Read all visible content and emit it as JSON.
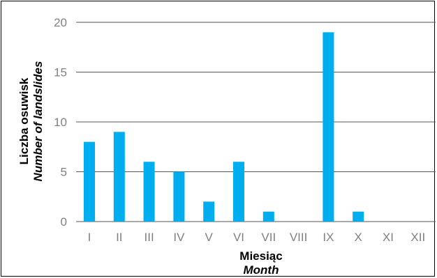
{
  "chart_data": {
    "type": "bar",
    "categories": [
      "I",
      "II",
      "III",
      "IV",
      "V",
      "VI",
      "VII",
      "VIII",
      "IX",
      "X",
      "XI",
      "XII"
    ],
    "values": [
      8,
      9,
      6,
      5,
      2,
      6,
      1,
      0,
      19,
      1,
      0,
      0
    ],
    "ylim": [
      0,
      20
    ],
    "yticks": [
      0,
      5,
      10,
      15,
      20
    ],
    "xlabel": "Miesiąc",
    "xlabel_en": "Month",
    "ylabel": "Liczba osuwisk",
    "ylabel_en": "Number of landslides",
    "grid": true,
    "bar_color": "#00AEEF",
    "grid_color": "#555555"
  }
}
